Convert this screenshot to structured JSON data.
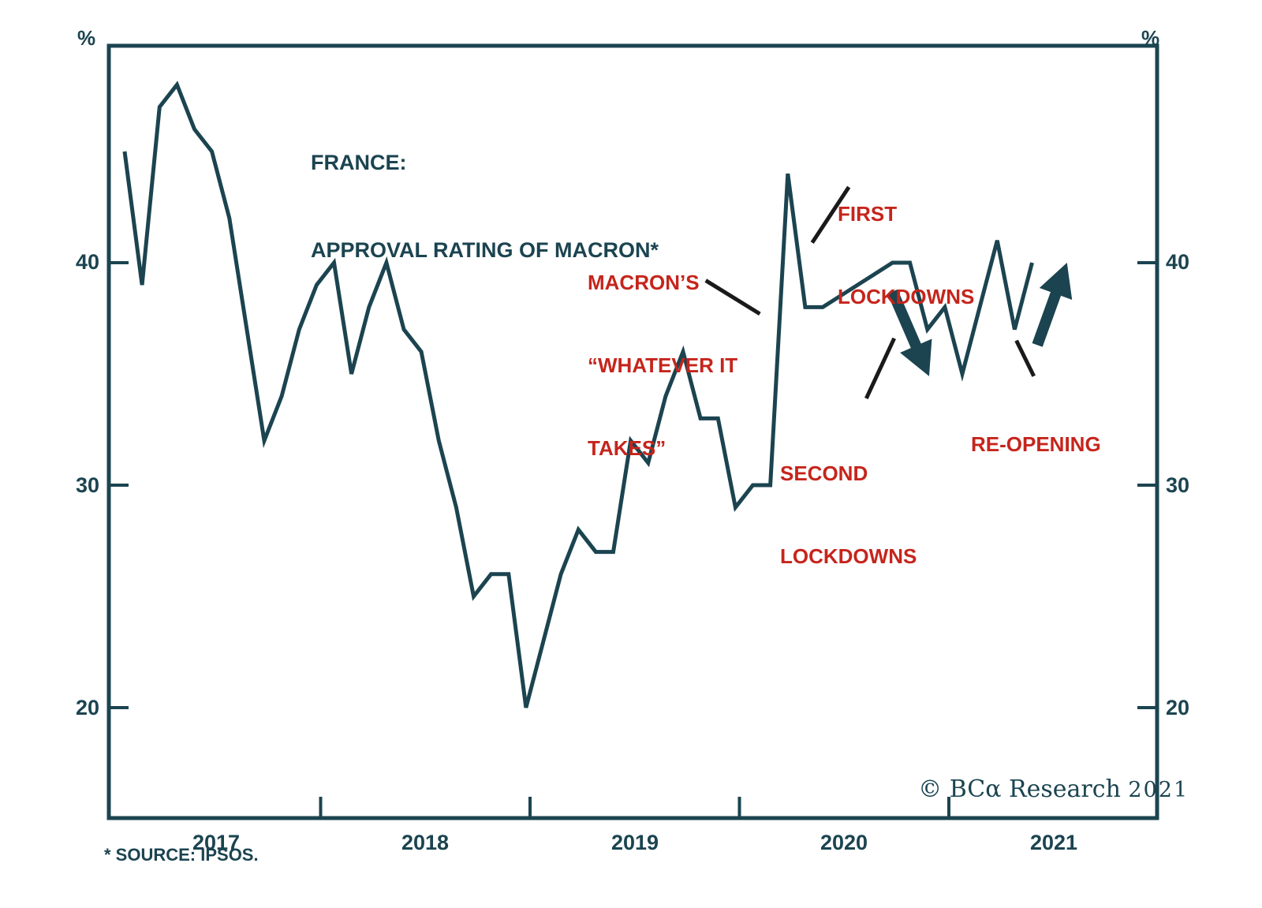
{
  "title": {
    "line1": "FRANCE:",
    "line2": "APPROVAL RATING OF MACRON*"
  },
  "axes": {
    "y_unit_left": "%",
    "y_unit_right": "%",
    "y_ticks": [
      "40",
      "30",
      "20"
    ],
    "x_ticks": [
      "2017",
      "2018",
      "2019",
      "2020",
      "2021"
    ]
  },
  "source_note": "* SOURCE: IPSOS.",
  "copyright": {
    "text": "© BCα Research ",
    "year": "2021"
  },
  "annotations": {
    "first_lockdowns": {
      "line1": "FIRST",
      "line2": "LOCKDOWNS"
    },
    "whatever_it_takes": {
      "line1": "MACRON’S",
      "line2": "“WHATEVER IT",
      "line3": "TAKES”"
    },
    "second_lockdowns": {
      "line1": "SECOND",
      "line2": "LOCKDOWNS"
    },
    "reopening": {
      "line1": "RE-OPENING"
    }
  },
  "colors": {
    "line": "#1b4450",
    "axis": "#1b4450",
    "annotation_red": "#c5251c",
    "leader_black": "#1a1a1a",
    "background": "#ffffff"
  },
  "chart_data": {
    "type": "line",
    "title": "FRANCE: APPROVAL RATING OF MACRON*",
    "ylabel": "%",
    "source": "IPSOS",
    "frequency": "monthly",
    "start_month": "2017-01",
    "end_month": "2021-05",
    "ylim": [
      15,
      50
    ],
    "y_tick_values": [
      20,
      30,
      40
    ],
    "x_tick_years": [
      2017,
      2018,
      2019,
      2020,
      2021
    ],
    "grid": false,
    "legend": "none",
    "x": [
      "2017-01",
      "2017-02",
      "2017-03",
      "2017-04",
      "2017-05",
      "2017-06",
      "2017-07",
      "2017-08",
      "2017-09",
      "2017-10",
      "2017-11",
      "2017-12",
      "2018-01",
      "2018-02",
      "2018-03",
      "2018-04",
      "2018-05",
      "2018-06",
      "2018-07",
      "2018-08",
      "2018-09",
      "2018-10",
      "2018-11",
      "2018-12",
      "2019-01",
      "2019-02",
      "2019-03",
      "2019-04",
      "2019-05",
      "2019-06",
      "2019-07",
      "2019-08",
      "2019-09",
      "2019-10",
      "2019-11",
      "2019-12",
      "2020-01",
      "2020-02",
      "2020-03",
      "2020-04",
      "2020-05",
      "2020-06",
      "2020-07",
      "2020-08",
      "2020-09",
      "2020-10",
      "2020-11",
      "2020-12",
      "2021-01",
      "2021-02",
      "2021-03",
      "2021-04",
      "2021-05"
    ],
    "values": [
      45,
      39,
      47,
      48,
      46,
      45,
      42,
      37,
      32,
      34,
      37,
      39,
      40,
      35,
      38,
      40,
      37,
      36,
      32,
      29,
      25,
      26,
      26,
      20,
      23,
      26,
      28,
      27,
      27,
      32,
      31,
      34,
      36,
      33,
      33,
      29,
      30,
      30,
      44,
      38,
      38,
      38.5,
      39,
      39.5,
      40,
      40,
      37,
      38,
      35,
      38,
      41,
      37,
      40
    ],
    "events": [
      {
        "label": "MACRON’S “WHATEVER IT TAKES”",
        "points_to": "2020-02/03 start of spike"
      },
      {
        "label": "FIRST LOCKDOWNS",
        "points_to": "2020-03/04 spike to 44 then 38"
      },
      {
        "label": "SECOND LOCKDOWNS",
        "points_to": "2020-10/11 decline from 40 to 37"
      },
      {
        "label": "RE-OPENING",
        "points_to": "2021-04/05 rise from 37 to 40"
      }
    ]
  },
  "overlays": {
    "arrows": [
      {
        "name": "second-lockdowns-arrow",
        "from": {
          "m": 44.0,
          "v": 38.7
        },
        "to": {
          "m": 46.1,
          "v": 34.9
        }
      },
      {
        "name": "reopening-arrow",
        "from": {
          "m": 52.3,
          "v": 36.3
        },
        "to": {
          "m": 54.0,
          "v": 40.0
        }
      }
    ],
    "leaders": [
      {
        "name": "first-lockdowns-leader",
        "from": {
          "m": 41.5,
          "v": 43.4
        },
        "to": {
          "m": 39.4,
          "v": 40.9
        }
      },
      {
        "name": "whatever-it-takes-leader",
        "from": {
          "m": 33.3,
          "v": 39.2
        },
        "to": {
          "m": 36.4,
          "v": 37.7
        }
      },
      {
        "name": "second-lockdowns-leader",
        "from": {
          "m": 44.1,
          "v": 36.6
        },
        "to": {
          "m": 42.5,
          "v": 33.9
        }
      },
      {
        "name": "reopening-leader",
        "from": {
          "m": 51.1,
          "v": 36.5
        },
        "to": {
          "m": 52.1,
          "v": 34.9
        }
      }
    ]
  }
}
